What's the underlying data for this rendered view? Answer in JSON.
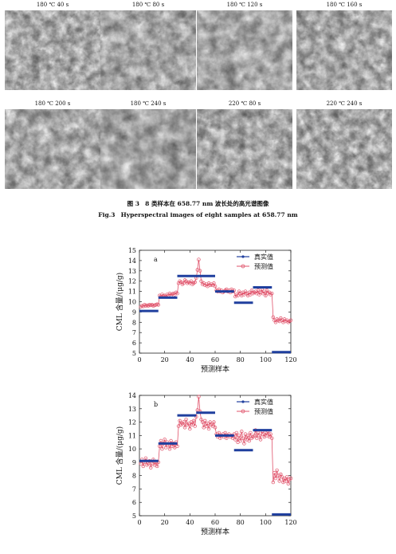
{
  "micrographs": [
    {
      "label": "180 ℃ 40 s"
    },
    {
      "label": "180 ℃ 80 s"
    },
    {
      "label": "180 ℃ 120 s"
    },
    {
      "label": "180 ℃ 160 s"
    },
    {
      "label": "180 ℃ 200 s"
    },
    {
      "label": "180 ℃ 240 s"
    },
    {
      "label": "220 ℃ 80 s"
    },
    {
      "label": "220 ℃ 240 s"
    }
  ],
  "caption": {
    "cn_fig": "图 3",
    "cn_text": "8 类样本在 658.77 nm 波长处的高光谱图像",
    "en_fig": "Fig.3",
    "en_text": "Hyperspectral images of eight samples at 658.77 nm"
  },
  "chart_data": [
    {
      "type": "line",
      "panel_label": "a",
      "xlabel": "预测样本",
      "ylabel": "CML 含量/(μg/g)",
      "xlim": [
        0,
        120
      ],
      "ylim": [
        5,
        15
      ],
      "xticks": [
        0,
        20,
        40,
        60,
        80,
        100,
        120
      ],
      "yticks": [
        5,
        6,
        7,
        8,
        9,
        10,
        11,
        12,
        13,
        14,
        15
      ],
      "legend": [
        "真实值",
        "预测值"
      ],
      "legend_position": "top-right",
      "series": [
        {
          "name": "真实值",
          "color": "#1f3f9e",
          "segments": [
            {
              "x": [
                0,
                15
              ],
              "y": 9.1
            },
            {
              "x": [
                15,
                30
              ],
              "y": 10.4
            },
            {
              "x": [
                30,
                60
              ],
              "y": 12.5
            },
            {
              "x": [
                60,
                75
              ],
              "y": 11.0
            },
            {
              "x": [
                75,
                90
              ],
              "y": 9.9
            },
            {
              "x": [
                90,
                105
              ],
              "y": 11.4
            },
            {
              "x": [
                105,
                120
              ],
              "y": 5.1
            }
          ]
        },
        {
          "name": "预测值",
          "color": "#e0536b",
          "y": [
            9.5,
            9.6,
            9.55,
            9.7,
            9.6,
            9.65,
            9.6,
            9.7,
            9.65,
            9.7,
            9.6,
            9.65,
            9.7,
            9.75,
            9.7,
            10.6,
            10.5,
            10.7,
            10.55,
            10.6,
            10.5,
            10.7,
            10.6,
            10.8,
            10.6,
            10.75,
            10.8,
            10.7,
            10.9,
            10.8,
            11.8,
            12.0,
            11.9,
            11.7,
            11.8,
            12.1,
            12.0,
            11.8,
            11.9,
            11.8,
            12.0,
            11.7,
            11.8,
            11.9,
            12.3,
            13.1,
            14.1,
            13.0,
            12.0,
            11.7,
            11.8,
            11.6,
            11.7,
            11.5,
            11.8,
            11.6,
            11.7,
            11.6,
            11.8,
            11.5,
            11.1,
            11.0,
            11.2,
            11.0,
            11.1,
            10.9,
            11.0,
            11.1,
            11.2,
            11.0,
            11.1,
            10.9,
            11.2,
            11.0,
            11.1,
            10.5,
            10.7,
            10.6,
            11.0,
            10.8,
            10.6,
            10.9,
            10.7,
            11.0,
            10.8,
            10.6,
            10.9,
            10.7,
            11.1,
            10.8,
            10.9,
            11.0,
            10.8,
            11.1,
            10.7,
            10.9,
            11.2,
            10.8,
            11.0,
            10.6,
            11.1,
            10.8,
            10.9,
            10.7,
            10.8,
            8.5,
            8.2,
            8.0,
            8.3,
            8.2,
            8.1,
            8.4,
            8.2,
            8.0,
            8.3,
            8.1,
            8.2,
            8.0,
            8.1,
            8.2
          ]
        }
      ]
    },
    {
      "type": "line",
      "panel_label": "b",
      "xlabel": "预测样本",
      "ylabel": "CML 含量/(μg/g)",
      "xlim": [
        0,
        120
      ],
      "ylim": [
        5,
        14
      ],
      "xticks": [
        0,
        20,
        40,
        60,
        80,
        100,
        120
      ],
      "yticks": [
        5,
        6,
        7,
        8,
        9,
        10,
        11,
        12,
        13,
        14
      ],
      "legend": [
        "真实值",
        "预测值"
      ],
      "legend_position": "top-right",
      "series": [
        {
          "name": "真实值",
          "color": "#1f3f9e",
          "segments": [
            {
              "x": [
                0,
                15
              ],
              "y": 9.1
            },
            {
              "x": [
                15,
                30
              ],
              "y": 10.4
            },
            {
              "x": [
                30,
                45
              ],
              "y": 12.5
            },
            {
              "x": [
                45,
                60
              ],
              "y": 12.7
            },
            {
              "x": [
                60,
                75
              ],
              "y": 11.0
            },
            {
              "x": [
                75,
                90
              ],
              "y": 9.9
            },
            {
              "x": [
                90,
                105
              ],
              "y": 11.4
            },
            {
              "x": [
                105,
                120
              ],
              "y": 5.1
            }
          ]
        },
        {
          "name": "预测值",
          "color": "#e0536b",
          "y": [
            8.9,
            9.2,
            8.7,
            9.0,
            9.3,
            8.8,
            8.9,
            9.1,
            8.6,
            8.9,
            9.2,
            8.8,
            9.0,
            8.7,
            9.0,
            10.2,
            10.6,
            10.0,
            10.4,
            10.7,
            10.1,
            10.5,
            10.3,
            10.0,
            10.6,
            10.2,
            10.4,
            10.1,
            10.5,
            10.2,
            11.7,
            12.1,
            11.8,
            11.9,
            12.0,
            11.6,
            12.2,
            11.8,
            11.9,
            11.5,
            12.0,
            11.8,
            12.1,
            11.7,
            12.4,
            12.9,
            13.9,
            12.8,
            12.2,
            12.0,
            11.6,
            12.1,
            11.7,
            11.9,
            11.5,
            12.0,
            11.8,
            11.7,
            12.0,
            11.6,
            11.1,
            10.9,
            11.2,
            10.8,
            11.0,
            11.1,
            10.9,
            11.2,
            10.8,
            11.0,
            11.1,
            10.9,
            11.0,
            10.8,
            11.1,
            10.7,
            11.2,
            10.5,
            11.0,
            10.6,
            11.3,
            10.8,
            10.4,
            11.1,
            10.7,
            11.0,
            10.6,
            11.2,
            10.8,
            10.9,
            11.0,
            11.4,
            10.8,
            11.2,
            11.0,
            10.7,
            11.3,
            11.1,
            10.9,
            11.2,
            11.0,
            11.3,
            10.9,
            11.1,
            10.8,
            7.5,
            8.2,
            7.8,
            8.4,
            8.0,
            7.6,
            8.1,
            7.9,
            7.5,
            7.8,
            7.6,
            7.9,
            7.4,
            7.7,
            7.8
          ]
        }
      ]
    }
  ]
}
